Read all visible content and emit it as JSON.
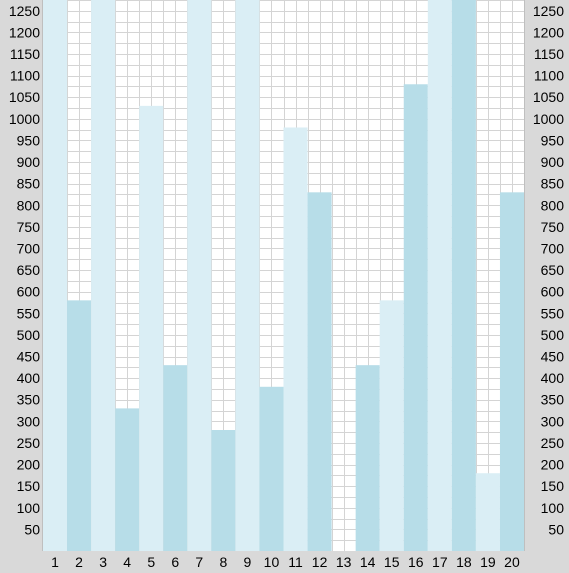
{
  "chart_data": {
    "type": "bar",
    "title": "",
    "xlabel": "",
    "ylabel": "",
    "categories": [
      "1",
      "2",
      "3",
      "4",
      "5",
      "6",
      "7",
      "8",
      "9",
      "10",
      "11",
      "12",
      "13",
      "14",
      "15",
      "16",
      "17",
      "18",
      "19",
      "20"
    ],
    "values": [
      1300,
      580,
      1300,
      330,
      1030,
      430,
      1300,
      280,
      1300,
      380,
      980,
      830,
      0,
      430,
      580,
      1080,
      1300,
      1300,
      180,
      830
    ],
    "ylim": [
      0,
      1275
    ],
    "y_ticks": [
      50,
      100,
      150,
      200,
      250,
      300,
      350,
      400,
      450,
      500,
      550,
      600,
      650,
      700,
      750,
      800,
      850,
      900,
      950,
      1000,
      1050,
      1100,
      1150,
      1200,
      1250
    ],
    "y_axis_labels_both_sides": true,
    "grid": true,
    "colors": {
      "bar_light": "#daeef5",
      "bar_dark": "#b7dde8",
      "gutter": "#d9d9d9",
      "grid": "#d4d4d4",
      "background": "#ffffff"
    }
  }
}
